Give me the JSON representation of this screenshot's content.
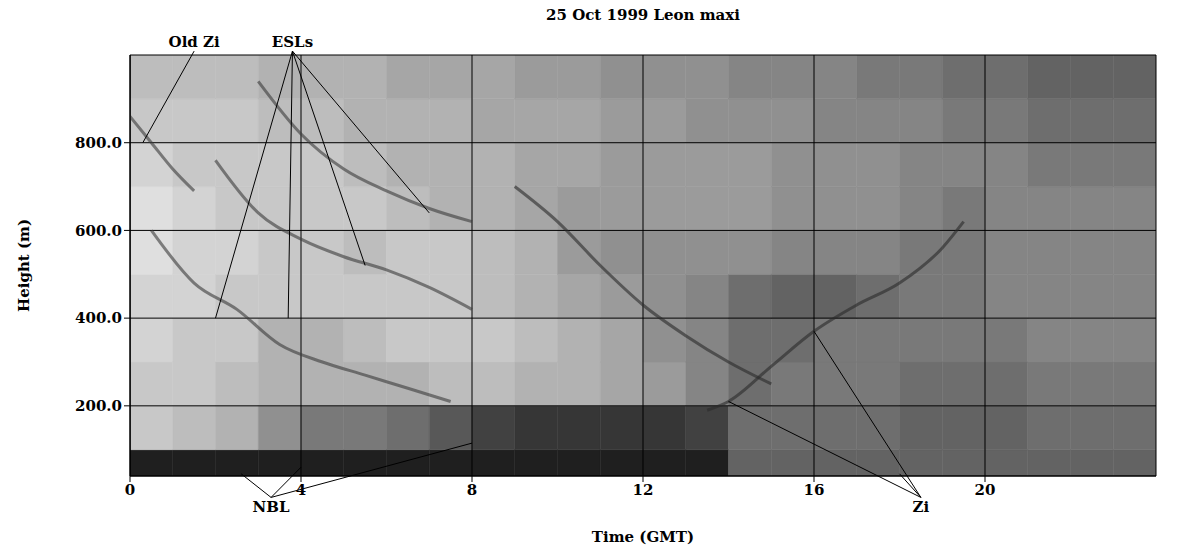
{
  "chart_data": {
    "type": "heatmap",
    "title": "25 Oct 1999 Leon maxi",
    "x_label": "Time (GMT)",
    "y_label": "Height (m)",
    "xlim": [
      0,
      24
    ],
    "ylim": [
      40,
      1000
    ],
    "xticks": [
      0,
      4,
      8,
      12,
      16,
      20
    ],
    "yticks": [
      {
        "value": 200,
        "label": "200.0"
      },
      {
        "value": 400,
        "label": "400.0"
      },
      {
        "value": 600,
        "label": "600.0"
      },
      {
        "value": 800,
        "label": "800.0"
      }
    ],
    "grid": true,
    "x_bins": [
      0,
      1,
      2,
      3,
      4,
      5,
      6,
      7,
      8,
      9,
      10,
      11,
      12,
      13,
      14,
      15,
      16,
      17,
      18,
      19,
      20,
      21,
      22,
      23,
      24
    ],
    "y_bins": [
      40,
      100,
      200,
      300,
      400,
      500,
      600,
      700,
      800,
      900,
      1000
    ],
    "color_range": [
      0,
      1
    ],
    "cells": [
      [
        0.95,
        0.95,
        0.95,
        0.95,
        0.95,
        0.95,
        0.95,
        0.95,
        0.95,
        0.95,
        0.95,
        0.95,
        0.95,
        0.95,
        0.65,
        0.65,
        0.65,
        0.65,
        0.65,
        0.65,
        0.65,
        0.65,
        0.65,
        0.65
      ],
      [
        0.2,
        0.25,
        0.3,
        0.45,
        0.55,
        0.55,
        0.6,
        0.7,
        0.8,
        0.85,
        0.85,
        0.85,
        0.85,
        0.8,
        0.6,
        0.6,
        0.6,
        0.6,
        0.65,
        0.65,
        0.65,
        0.6,
        0.6,
        0.6
      ],
      [
        0.2,
        0.2,
        0.25,
        0.3,
        0.3,
        0.3,
        0.3,
        0.25,
        0.25,
        0.3,
        0.3,
        0.35,
        0.4,
        0.5,
        0.6,
        0.55,
        0.55,
        0.55,
        0.6,
        0.6,
        0.6,
        0.55,
        0.55,
        0.55
      ],
      [
        0.15,
        0.2,
        0.2,
        0.3,
        0.3,
        0.25,
        0.2,
        0.2,
        0.2,
        0.25,
        0.3,
        0.35,
        0.45,
        0.5,
        0.6,
        0.6,
        0.55,
        0.55,
        0.55,
        0.55,
        0.55,
        0.5,
        0.5,
        0.5
      ],
      [
        0.15,
        0.15,
        0.2,
        0.2,
        0.2,
        0.2,
        0.2,
        0.2,
        0.25,
        0.3,
        0.35,
        0.4,
        0.45,
        0.5,
        0.6,
        0.65,
        0.65,
        0.6,
        0.55,
        0.55,
        0.5,
        0.5,
        0.5,
        0.5
      ],
      [
        0.1,
        0.15,
        0.15,
        0.2,
        0.2,
        0.25,
        0.2,
        0.2,
        0.25,
        0.3,
        0.4,
        0.45,
        0.45,
        0.45,
        0.45,
        0.5,
        0.5,
        0.5,
        0.55,
        0.55,
        0.5,
        0.5,
        0.5,
        0.5
      ],
      [
        0.1,
        0.15,
        0.2,
        0.2,
        0.2,
        0.2,
        0.25,
        0.3,
        0.3,
        0.35,
        0.4,
        0.4,
        0.4,
        0.4,
        0.4,
        0.45,
        0.45,
        0.45,
        0.5,
        0.55,
        0.5,
        0.5,
        0.5,
        0.5
      ],
      [
        0.15,
        0.2,
        0.2,
        0.2,
        0.2,
        0.25,
        0.3,
        0.3,
        0.3,
        0.35,
        0.35,
        0.4,
        0.4,
        0.4,
        0.4,
        0.45,
        0.45,
        0.45,
        0.5,
        0.5,
        0.5,
        0.55,
        0.55,
        0.55
      ],
      [
        0.2,
        0.2,
        0.2,
        0.25,
        0.25,
        0.3,
        0.3,
        0.3,
        0.35,
        0.35,
        0.35,
        0.4,
        0.4,
        0.45,
        0.45,
        0.45,
        0.5,
        0.5,
        0.5,
        0.55,
        0.55,
        0.6,
        0.6,
        0.6
      ],
      [
        0.25,
        0.25,
        0.25,
        0.3,
        0.3,
        0.3,
        0.35,
        0.35,
        0.35,
        0.4,
        0.4,
        0.45,
        0.45,
        0.45,
        0.5,
        0.5,
        0.5,
        0.55,
        0.55,
        0.6,
        0.6,
        0.65,
        0.65,
        0.65
      ]
    ],
    "traces": [
      {
        "color": "#3a3a3a",
        "x": [
          0,
          0.5,
          1,
          1.5
        ],
        "y": [
          860,
          800,
          740,
          690
        ]
      },
      {
        "color": "#3a3a3a",
        "x": [
          0.5,
          1.5,
          2.5,
          3.5,
          4.5,
          5.5,
          6.5,
          7.5
        ],
        "y": [
          600,
          480,
          420,
          340,
          300,
          270,
          240,
          210
        ]
      },
      {
        "color": "#3a3a3a",
        "x": [
          2,
          3,
          4,
          5,
          6,
          7,
          8
        ],
        "y": [
          760,
          640,
          580,
          540,
          510,
          470,
          420
        ]
      },
      {
        "color": "#3a3a3a",
        "x": [
          3,
          4,
          5,
          6,
          7,
          8
        ],
        "y": [
          940,
          820,
          740,
          690,
          650,
          620
        ]
      },
      {
        "color": "#2a2a2a",
        "x": [
          9,
          10,
          11,
          12,
          13,
          14,
          15
        ],
        "y": [
          700,
          620,
          520,
          430,
          360,
          300,
          250
        ]
      },
      {
        "color": "#2a2a2a",
        "x": [
          13.5,
          14,
          15,
          16,
          17,
          18,
          19,
          19.5
        ],
        "y": [
          190,
          210,
          290,
          370,
          430,
          480,
          560,
          620
        ]
      }
    ],
    "annotations": [
      {
        "text": "Old Zi",
        "x": 1.5,
        "y": 1030,
        "targets": [
          [
            0.3,
            800
          ]
        ]
      },
      {
        "text": "ESLs",
        "x": 3.8,
        "y": 1030,
        "targets": [
          [
            2,
            400
          ],
          [
            3.7,
            400
          ],
          [
            5.5,
            520
          ],
          [
            7,
            640
          ]
        ]
      },
      {
        "text": "NBL",
        "x": 3.3,
        "y": -30,
        "targets": [
          [
            2.6,
            45
          ],
          [
            4,
            60
          ],
          [
            8,
            115
          ]
        ]
      },
      {
        "text": "Zi",
        "x": 18.5,
        "y": -30,
        "targets": [
          [
            14,
            210
          ],
          [
            16,
            370
          ],
          [
            18,
            45
          ]
        ]
      }
    ]
  }
}
